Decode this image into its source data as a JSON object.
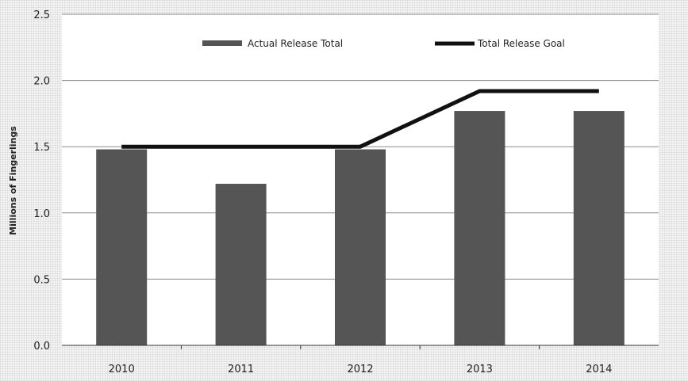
{
  "chart_data": {
    "type": "bar",
    "categories": [
      "2010",
      "2011",
      "2012",
      "2013",
      "2014"
    ],
    "series": [
      {
        "name": "Actual Release Total",
        "type": "bar",
        "values": [
          1.48,
          1.22,
          1.48,
          1.77,
          1.77
        ],
        "color": "#555555"
      },
      {
        "name": "Total Release Goal",
        "type": "line",
        "values": [
          1.5,
          1.5,
          1.5,
          1.92,
          1.92
        ],
        "color": "#111111"
      }
    ],
    "ylabel": "Millions of Fingerlings",
    "ylim": [
      0,
      2.5
    ],
    "yticks": [
      "0.0",
      "0.5",
      "1.0",
      "1.5",
      "2.0",
      "2.5"
    ],
    "legend_position": "top",
    "grid": true
  }
}
